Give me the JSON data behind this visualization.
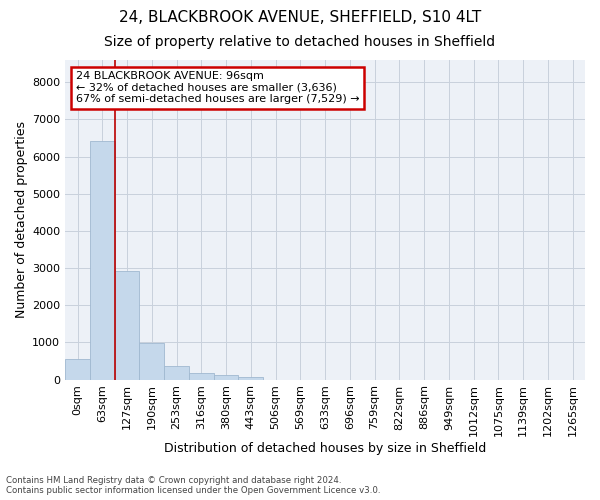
{
  "title_line1": "24, BLACKBROOK AVENUE, SHEFFIELD, S10 4LT",
  "title_line2": "Size of property relative to detached houses in Sheffield",
  "xlabel": "Distribution of detached houses by size in Sheffield",
  "ylabel": "Number of detached properties",
  "bar_labels": [
    "0sqm",
    "63sqm",
    "127sqm",
    "190sqm",
    "253sqm",
    "316sqm",
    "380sqm",
    "443sqm",
    "506sqm",
    "569sqm",
    "633sqm",
    "696sqm",
    "759sqm",
    "822sqm",
    "886sqm",
    "949sqm",
    "1012sqm",
    "1075sqm",
    "1139sqm",
    "1202sqm",
    "1265sqm"
  ],
  "bar_values": [
    560,
    6410,
    2920,
    980,
    360,
    175,
    110,
    80,
    0,
    0,
    0,
    0,
    0,
    0,
    0,
    0,
    0,
    0,
    0,
    0,
    0
  ],
  "bar_color": "#c5d8eb",
  "bar_edge_color": "#a0b8d0",
  "grid_color": "#c8d0dc",
  "background_color": "#edf1f7",
  "vline_x": 1.52,
  "vline_color": "#bb0000",
  "annotation_text": "24 BLACKBROOK AVENUE: 96sqm\n← 32% of detached houses are smaller (3,636)\n67% of semi-detached houses are larger (7,529) →",
  "annotation_box_color": "#cc0000",
  "ylim": [
    0,
    8600
  ],
  "yticks": [
    0,
    1000,
    2000,
    3000,
    4000,
    5000,
    6000,
    7000,
    8000
  ],
  "footnote": "Contains HM Land Registry data © Crown copyright and database right 2024.\nContains public sector information licensed under the Open Government Licence v3.0.",
  "title1_fontsize": 11,
  "title2_fontsize": 10,
  "xlabel_fontsize": 9,
  "ylabel_fontsize": 9,
  "tick_fontsize": 8,
  "annot_fontsize": 8
}
